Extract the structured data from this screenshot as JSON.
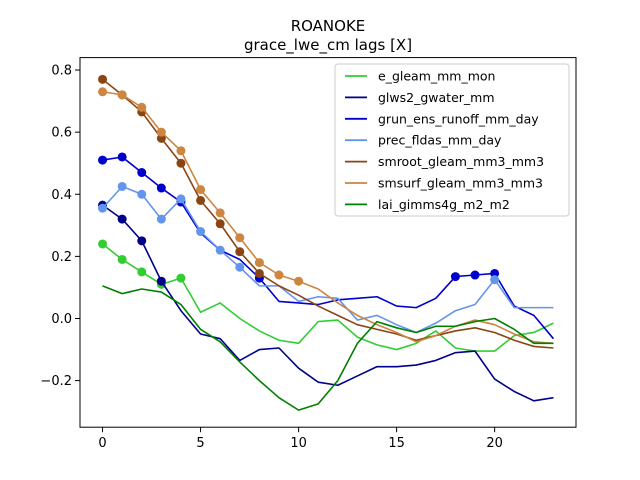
{
  "chart_data": {
    "type": "line",
    "title": "ROANOKE",
    "subtitle": "grace_lwe_cm lags [X]",
    "xlabel": "",
    "ylabel": "",
    "xlim": [
      -1.15,
      24.15
    ],
    "ylim": [
      -0.35,
      0.84
    ],
    "xticks": [
      0,
      5,
      10,
      15,
      20
    ],
    "yticks": [
      -0.2,
      0.0,
      0.2,
      0.4,
      0.6,
      0.8
    ],
    "ytick_labels": [
      "−0.2",
      "0.0",
      "0.2",
      "0.4",
      "0.6",
      "0.8"
    ],
    "grid": false,
    "legend_position": "top-right",
    "x": [
      0,
      1,
      2,
      3,
      4,
      5,
      6,
      7,
      8,
      9,
      10,
      11,
      12,
      13,
      14,
      15,
      16,
      17,
      18,
      19,
      20,
      21,
      22,
      23
    ],
    "series": [
      {
        "name": "e_gleam_mm_mon",
        "color": "#32cd32",
        "values": [
          0.24,
          0.19,
          0.15,
          0.11,
          0.13,
          0.02,
          0.05,
          0.0,
          -0.04,
          -0.07,
          -0.08,
          -0.01,
          -0.005,
          -0.06,
          -0.085,
          -0.1,
          -0.08,
          -0.04,
          -0.095,
          -0.105,
          -0.105,
          -0.055,
          -0.045,
          -0.015
        ],
        "markers": [
          0,
          1,
          2,
          3,
          4
        ]
      },
      {
        "name": "glws2_gwater_mm",
        "color": "#00008b",
        "values": [
          0.365,
          0.32,
          0.25,
          0.12,
          0.025,
          -0.05,
          -0.065,
          -0.135,
          -0.1,
          -0.095,
          -0.16,
          -0.205,
          -0.215,
          -0.185,
          -0.155,
          -0.155,
          -0.15,
          -0.135,
          -0.11,
          -0.105,
          -0.195,
          -0.235,
          -0.265,
          -0.255
        ],
        "markers": [
          0,
          1,
          2,
          3
        ]
      },
      {
        "name": "grun_ens_runoff_mm_day",
        "color": "#0000cd",
        "values": [
          0.51,
          0.52,
          0.47,
          0.42,
          0.375,
          0.275,
          0.22,
          0.19,
          0.13,
          0.055,
          0.05,
          0.045,
          0.06,
          0.065,
          0.07,
          0.04,
          0.035,
          0.065,
          0.135,
          0.14,
          0.145,
          0.04,
          0.01,
          -0.065
        ],
        "markers": [
          0,
          1,
          2,
          3,
          4,
          8,
          18,
          19,
          20
        ]
      },
      {
        "name": "prec_fldas_mm_day",
        "color": "#6495ed",
        "values": [
          0.355,
          0.425,
          0.4,
          0.32,
          0.385,
          0.28,
          0.22,
          0.165,
          0.105,
          0.105,
          0.055,
          0.07,
          0.065,
          -0.005,
          0.01,
          -0.02,
          -0.045,
          -0.015,
          0.025,
          0.045,
          0.125,
          0.035,
          0.035,
          0.035
        ],
        "markers": [
          0,
          1,
          2,
          3,
          4,
          5,
          6,
          7,
          20
        ]
      },
      {
        "name": "smroot_gleam_mm3_mm3",
        "color": "#8b4513",
        "values": [
          0.77,
          0.72,
          0.665,
          0.58,
          0.5,
          0.38,
          0.305,
          0.215,
          0.145,
          0.105,
          0.075,
          0.04,
          0.01,
          -0.02,
          -0.035,
          -0.05,
          -0.07,
          -0.055,
          -0.04,
          -0.03,
          -0.045,
          -0.07,
          -0.09,
          -0.095
        ],
        "markers": [
          0,
          1,
          2,
          3,
          4,
          5,
          6,
          7,
          8
        ]
      },
      {
        "name": "smsurf_gleam_mm3_mm3",
        "color": "#cd853f",
        "values": [
          0.73,
          0.72,
          0.68,
          0.6,
          0.54,
          0.415,
          0.34,
          0.26,
          0.18,
          0.14,
          0.12,
          0.095,
          0.05,
          0.01,
          -0.02,
          -0.045,
          -0.075,
          -0.055,
          -0.025,
          -0.005,
          -0.02,
          -0.05,
          -0.075,
          -0.08
        ],
        "markers": [
          0,
          1,
          2,
          3,
          4,
          5,
          6,
          7,
          8,
          9,
          10
        ]
      },
      {
        "name": "lai_gimms4g_m2_m2",
        "color": "#008000",
        "values": [
          0.105,
          0.08,
          0.095,
          0.085,
          0.045,
          -0.035,
          -0.075,
          -0.14,
          -0.2,
          -0.255,
          -0.295,
          -0.275,
          -0.2,
          -0.08,
          -0.01,
          -0.03,
          -0.045,
          -0.025,
          -0.025,
          -0.01,
          0.0,
          -0.035,
          -0.08,
          -0.08
        ],
        "markers": []
      }
    ]
  }
}
